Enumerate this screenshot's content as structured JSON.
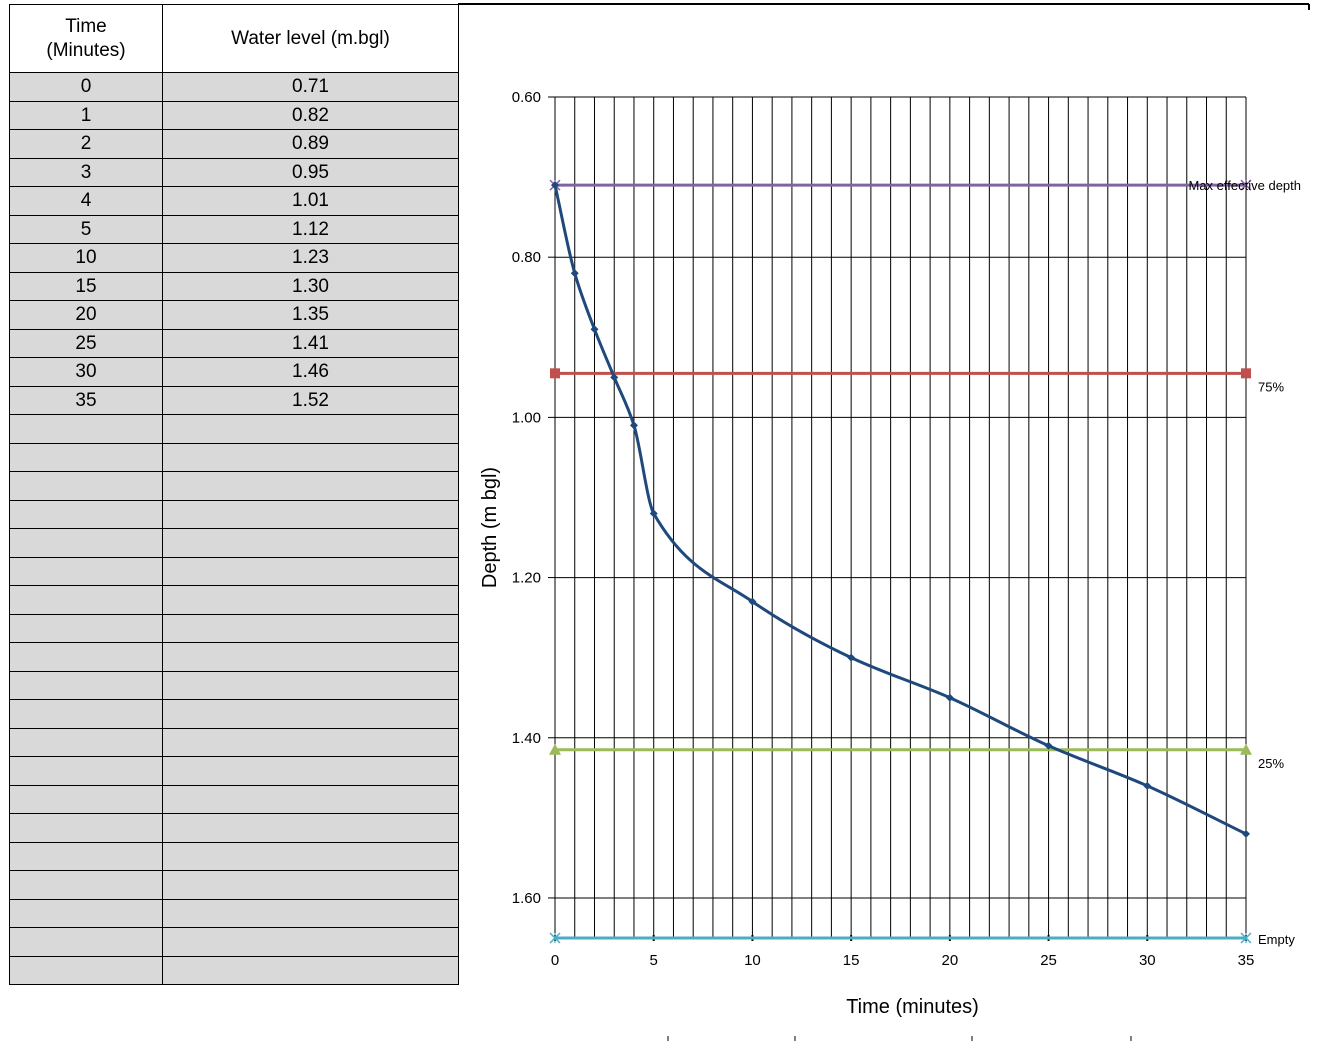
{
  "table": {
    "headers": {
      "time": "Time (Minutes)",
      "water_level": "Water level (m.bgl)"
    },
    "rows": [
      {
        "time": "0",
        "level": "0.71"
      },
      {
        "time": "1",
        "level": "0.82"
      },
      {
        "time": "2",
        "level": "0.89"
      },
      {
        "time": "3",
        "level": "0.95"
      },
      {
        "time": "4",
        "level": "1.01"
      },
      {
        "time": "5",
        "level": "1.12"
      },
      {
        "time": "10",
        "level": "1.23"
      },
      {
        "time": "15",
        "level": "1.30"
      },
      {
        "time": "20",
        "level": "1.35"
      },
      {
        "time": "25",
        "level": "1.41"
      },
      {
        "time": "30",
        "level": "1.46"
      },
      {
        "time": "35",
        "level": "1.52"
      }
    ],
    "empty_row_count": 20
  },
  "chart_data": {
    "type": "line",
    "title": "",
    "xlabel": "Time (minutes)",
    "ylabel": "Depth (m bgl)",
    "xlim": [
      0,
      35
    ],
    "ylim": [
      0.6,
      1.65
    ],
    "y_inverted": true,
    "x_ticks": [
      0,
      5,
      10,
      15,
      20,
      25,
      30,
      35
    ],
    "y_ticks": [
      0.6,
      0.8,
      1.0,
      1.2,
      1.4,
      1.6
    ],
    "y_tick_labels": [
      "0.60",
      "0.80",
      "1.00",
      "1.20",
      "1.40",
      "1.60"
    ],
    "grid": true,
    "vertical_gridlines_every": 1,
    "series": [
      {
        "name": "",
        "color": "#1f497d",
        "marker": "diamond",
        "smooth": true,
        "x": [
          0,
          1,
          2,
          3,
          4,
          5,
          10,
          15,
          20,
          25,
          30,
          35
        ],
        "y": [
          0.71,
          0.82,
          0.89,
          0.95,
          1.01,
          1.12,
          1.23,
          1.3,
          1.35,
          1.41,
          1.46,
          1.52
        ]
      }
    ],
    "reference_lines": [
      {
        "label": "Max effective depth",
        "y": 0.71,
        "color": "#8064a2",
        "marker": "x"
      },
      {
        "label": "75%",
        "y": 0.945,
        "color": "#c0504d",
        "marker": "square"
      },
      {
        "label": "25%",
        "y": 1.415,
        "color": "#9bbb59",
        "marker": "triangle"
      },
      {
        "label": "Empty",
        "y": 1.65,
        "color": "#4bacc6",
        "marker": "x"
      }
    ]
  }
}
